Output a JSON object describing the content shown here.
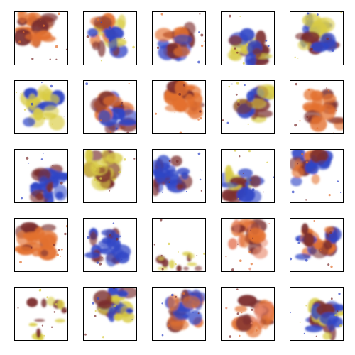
{
  "grid": {
    "rows": 5,
    "cols": 5,
    "colors": {
      "orange": "#e3712f",
      "blue": "#2f45c6",
      "yellow": "#d9cc45",
      "maroon": "#7b2e2e",
      "salmon": "#e8876b"
    },
    "tiles": [
      {
        "palette": "orange",
        "scene": "sample-1"
      },
      {
        "palette": "mixed",
        "scene": "sample-2"
      },
      {
        "palette": "orange-blue",
        "scene": "sample-3"
      },
      {
        "palette": "blue-yellow",
        "scene": "sample-4"
      },
      {
        "palette": "blue-yellow",
        "scene": "sample-5"
      },
      {
        "palette": "yellow-blue",
        "scene": "sample-6"
      },
      {
        "palette": "blue-orange",
        "scene": "sample-7"
      },
      {
        "palette": "orange-maroon",
        "scene": "sample-8"
      },
      {
        "palette": "blue-yellow",
        "scene": "sample-9"
      },
      {
        "palette": "orange",
        "scene": "sample-10"
      },
      {
        "palette": "blue-maroon",
        "scene": "sample-11"
      },
      {
        "palette": "yellow",
        "scene": "sample-12"
      },
      {
        "palette": "blue",
        "scene": "sample-13"
      },
      {
        "palette": "blue-yellow",
        "scene": "sample-14"
      },
      {
        "palette": "blue-orange",
        "scene": "sample-15"
      },
      {
        "palette": "orange",
        "scene": "sample-16"
      },
      {
        "palette": "blue",
        "scene": "sample-17"
      },
      {
        "palette": "yellow-sparse",
        "scene": "sample-18"
      },
      {
        "palette": "salmon",
        "scene": "sample-19"
      },
      {
        "palette": "orange-blue",
        "scene": "sample-20"
      },
      {
        "palette": "yellow-sparse",
        "scene": "sample-21"
      },
      {
        "palette": "blue-yellow",
        "scene": "sample-22"
      },
      {
        "palette": "blue-orange",
        "scene": "sample-23"
      },
      {
        "palette": "salmon",
        "scene": "sample-24"
      },
      {
        "palette": "blue-yellow",
        "scene": "sample-25"
      }
    ]
  }
}
